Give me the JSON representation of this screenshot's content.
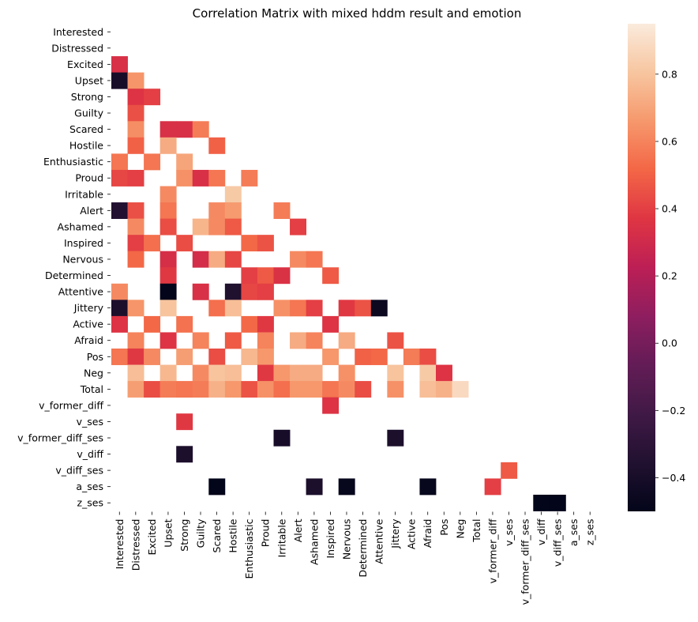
{
  "chart_data": {
    "type": "heatmap",
    "title": "Correlation Matrix with mixed hddm result and emotion",
    "labels": [
      "Interested",
      "Distressed",
      "Excited",
      "Upset",
      "Strong",
      "Guilty",
      "Scared",
      "Hostile",
      "Enthusiastic",
      "Proud",
      "Irritable",
      "Alert",
      "Ashamed",
      "Inspired",
      "Nervous",
      "Determined",
      "Attentive",
      "Jittery",
      "Active",
      "Afraid",
      "Pos",
      "Neg",
      "Total",
      "v_former_diff",
      "v_ses",
      "v_former_diff_ses",
      "v_diff",
      "v_diff_ses",
      "a_ses",
      "z_ses"
    ],
    "mask": "upper triangle including diagonal; blank cells are not shown",
    "cells": [
      [
        2,
        0,
        0.34
      ],
      [
        3,
        0,
        -0.4
      ],
      [
        3,
        1,
        0.65
      ],
      [
        4,
        1,
        0.36
      ],
      [
        4,
        2,
        0.4
      ],
      [
        5,
        1,
        0.45
      ],
      [
        6,
        1,
        0.63
      ],
      [
        6,
        3,
        0.34
      ],
      [
        6,
        4,
        0.34
      ],
      [
        6,
        5,
        0.58
      ],
      [
        7,
        1,
        0.5
      ],
      [
        7,
        3,
        0.72
      ],
      [
        7,
        6,
        0.5
      ],
      [
        8,
        0,
        0.56
      ],
      [
        8,
        2,
        0.56
      ],
      [
        8,
        4,
        0.7
      ],
      [
        9,
        0,
        0.42
      ],
      [
        9,
        1,
        0.4
      ],
      [
        9,
        4,
        0.64
      ],
      [
        9,
        5,
        0.34
      ],
      [
        9,
        6,
        0.56
      ],
      [
        9,
        8,
        0.58
      ],
      [
        10,
        3,
        0.62
      ],
      [
        10,
        7,
        0.82
      ],
      [
        11,
        0,
        -0.35
      ],
      [
        11,
        1,
        0.45
      ],
      [
        11,
        3,
        0.56
      ],
      [
        11,
        6,
        0.62
      ],
      [
        11,
        7,
        0.67
      ],
      [
        11,
        10,
        0.58
      ],
      [
        12,
        1,
        0.62
      ],
      [
        12,
        3,
        0.44
      ],
      [
        12,
        5,
        0.75
      ],
      [
        12,
        6,
        0.62
      ],
      [
        12,
        7,
        0.48
      ],
      [
        12,
        11,
        0.4
      ],
      [
        13,
        1,
        0.4
      ],
      [
        13,
        2,
        0.54
      ],
      [
        13,
        4,
        0.44
      ],
      [
        13,
        8,
        0.52
      ],
      [
        13,
        9,
        0.46
      ],
      [
        14,
        1,
        0.52
      ],
      [
        14,
        3,
        0.33
      ],
      [
        14,
        5,
        0.32
      ],
      [
        14,
        6,
        0.72
      ],
      [
        14,
        7,
        0.42
      ],
      [
        14,
        11,
        0.62
      ],
      [
        14,
        12,
        0.56
      ],
      [
        15,
        3,
        0.38
      ],
      [
        15,
        8,
        0.4
      ],
      [
        15,
        9,
        0.48
      ],
      [
        15,
        10,
        0.35
      ],
      [
        15,
        13,
        0.48
      ],
      [
        16,
        0,
        0.62
      ],
      [
        16,
        3,
        -0.5
      ],
      [
        16,
        5,
        0.34
      ],
      [
        16,
        7,
        -0.36
      ],
      [
        16,
        8,
        0.42
      ],
      [
        16,
        9,
        0.4
      ],
      [
        17,
        0,
        -0.38
      ],
      [
        17,
        1,
        0.65
      ],
      [
        17,
        3,
        0.8
      ],
      [
        17,
        6,
        0.54
      ],
      [
        17,
        7,
        0.78
      ],
      [
        17,
        10,
        0.64
      ],
      [
        17,
        11,
        0.56
      ],
      [
        17,
        12,
        0.4
      ],
      [
        17,
        14,
        0.38
      ],
      [
        17,
        15,
        0.46
      ],
      [
        17,
        16,
        -0.46
      ],
      [
        18,
        0,
        0.36
      ],
      [
        18,
        2,
        0.52
      ],
      [
        18,
        4,
        0.55
      ],
      [
        18,
        8,
        0.52
      ],
      [
        18,
        9,
        0.38
      ],
      [
        18,
        13,
        0.36
      ],
      [
        19,
        1,
        0.6
      ],
      [
        19,
        3,
        0.36
      ],
      [
        19,
        5,
        0.6
      ],
      [
        19,
        7,
        0.48
      ],
      [
        19,
        9,
        0.6
      ],
      [
        19,
        11,
        0.72
      ],
      [
        19,
        12,
        0.6
      ],
      [
        19,
        14,
        0.72
      ],
      [
        19,
        17,
        0.46
      ],
      [
        20,
        0,
        0.56
      ],
      [
        20,
        1,
        0.38
      ],
      [
        20,
        2,
        0.62
      ],
      [
        20,
        4,
        0.68
      ],
      [
        20,
        6,
        0.44
      ],
      [
        20,
        8,
        0.76
      ],
      [
        20,
        9,
        0.66
      ],
      [
        20,
        13,
        0.66
      ],
      [
        20,
        15,
        0.5
      ],
      [
        20,
        16,
        0.52
      ],
      [
        20,
        18,
        0.58
      ],
      [
        20,
        19,
        0.44
      ],
      [
        21,
        1,
        0.78
      ],
      [
        21,
        3,
        0.76
      ],
      [
        21,
        5,
        0.62
      ],
      [
        21,
        6,
        0.8
      ],
      [
        21,
        7,
        0.78
      ],
      [
        21,
        9,
        0.38
      ],
      [
        21,
        10,
        0.66
      ],
      [
        21,
        11,
        0.72
      ],
      [
        21,
        12,
        0.72
      ],
      [
        21,
        14,
        0.64
      ],
      [
        21,
        17,
        0.8
      ],
      [
        21,
        19,
        0.82
      ],
      [
        21,
        20,
        0.36
      ],
      [
        22,
        1,
        0.68
      ],
      [
        22,
        2,
        0.44
      ],
      [
        22,
        3,
        0.58
      ],
      [
        22,
        4,
        0.56
      ],
      [
        22,
        5,
        0.58
      ],
      [
        22,
        6,
        0.74
      ],
      [
        22,
        7,
        0.66
      ],
      [
        22,
        8,
        0.46
      ],
      [
        22,
        9,
        0.64
      ],
      [
        22,
        10,
        0.54
      ],
      [
        22,
        11,
        0.66
      ],
      [
        22,
        12,
        0.66
      ],
      [
        22,
        13,
        0.56
      ],
      [
        22,
        14,
        0.62
      ],
      [
        22,
        15,
        0.44
      ],
      [
        22,
        17,
        0.64
      ],
      [
        22,
        19,
        0.78
      ],
      [
        22,
        20,
        0.74
      ],
      [
        22,
        21,
        0.88
      ],
      [
        23,
        13,
        0.36
      ],
      [
        24,
        4,
        0.38
      ],
      [
        25,
        10,
        -0.4
      ],
      [
        25,
        17,
        -0.38
      ],
      [
        26,
        4,
        -0.38
      ],
      [
        27,
        24,
        0.48
      ],
      [
        28,
        6,
        -0.5
      ],
      [
        28,
        12,
        -0.38
      ],
      [
        28,
        14,
        -0.48
      ],
      [
        28,
        19,
        -0.48
      ],
      [
        28,
        23,
        0.4
      ],
      [
        29,
        26,
        -0.52
      ],
      [
        29,
        27,
        -0.52
      ]
    ],
    "colorbar": {
      "range": [
        -0.5,
        0.95
      ],
      "ticks": [
        "−0.4",
        "−0.2",
        "0.0",
        "0.2",
        "0.4",
        "0.6",
        "0.8"
      ],
      "tick_values": [
        -0.4,
        -0.2,
        0.0,
        0.2,
        0.4,
        0.6,
        0.8
      ],
      "colormap": "rocket"
    }
  }
}
